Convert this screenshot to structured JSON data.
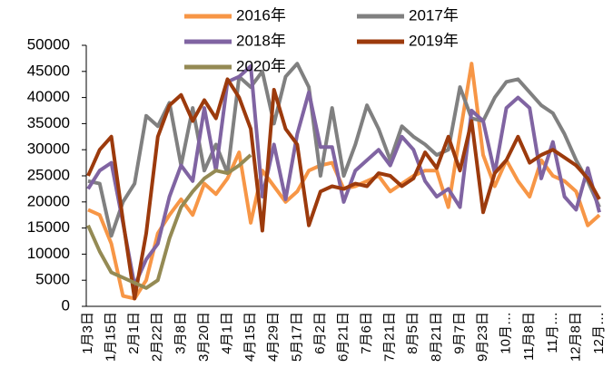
{
  "chart_data": {
    "type": "line",
    "categories": [
      "1月3日",
      null,
      "1月15日",
      null,
      "2月1日",
      null,
      "2月22日",
      null,
      "3月8日",
      null,
      "3月20日",
      null,
      "4月1日",
      null,
      "4月15日",
      null,
      "4月29日",
      null,
      "5月17日",
      null,
      "6月2日",
      null,
      "6月21日",
      null,
      "7月6日",
      null,
      "7月21日",
      null,
      "8月5日",
      null,
      "8月21日",
      null,
      "9月7日",
      null,
      "9月23日",
      null,
      "10月…",
      null,
      "11月8日",
      null,
      "11月…",
      null,
      "12月8日",
      null,
      "12月…"
    ],
    "series": [
      {
        "name": "2016年",
        "color": "#f79646",
        "values": [
          18500,
          17500,
          12000,
          2000,
          1500,
          5000,
          14000,
          17500,
          20500,
          17500,
          23500,
          21500,
          24500,
          29500,
          16000,
          26000,
          23000,
          20000,
          22000,
          26000,
          27000,
          27500,
          22500,
          23000,
          24000,
          25000,
          22000,
          23500,
          25000,
          26000,
          26000,
          19000,
          33000,
          46500,
          29000,
          23000,
          28000,
          24000,
          21000,
          28000,
          25000,
          24000,
          22000,
          15500,
          17500
        ]
      },
      {
        "name": "2017年",
        "color": "#808080",
        "values": [
          24000,
          23500,
          13500,
          20000,
          23500,
          36500,
          34500,
          39000,
          27000,
          38000,
          26000,
          31000,
          25500,
          44000,
          42000,
          45000,
          35000,
          44000,
          46500,
          42000,
          25000,
          38000,
          25000,
          31000,
          38500,
          34000,
          28000,
          34500,
          32500,
          31000,
          29000,
          30000,
          42000,
          36000,
          35500,
          40000,
          43000,
          43500,
          41000,
          38500,
          37000,
          33000,
          28000,
          24000,
          19000
        ]
      },
      {
        "name": "2018年",
        "color": "#8064a2",
        "values": [
          22500,
          26000,
          27500,
          16000,
          4000,
          9000,
          12000,
          21000,
          27000,
          24000,
          38000,
          26000,
          43000,
          44000,
          46000,
          21000,
          31000,
          20500,
          33000,
          41000,
          30500,
          30500,
          20000,
          26000,
          28000,
          30000,
          27000,
          32500,
          30000,
          24000,
          21000,
          22500,
          19000,
          37500,
          35500,
          25500,
          38000,
          40000,
          38000,
          24500,
          31500,
          21000,
          18500,
          26500,
          18000
        ]
      },
      {
        "name": "2019年",
        "color": "#9c3a0c",
        "values": [
          25000,
          30000,
          32500,
          16500,
          1500,
          14000,
          32500,
          38500,
          40500,
          35500,
          39500,
          36000,
          43500,
          40000,
          34000,
          14500,
          41500,
          34000,
          31000,
          15500,
          22000,
          23000,
          22500,
          23500,
          23000,
          25500,
          25000,
          23000,
          24500,
          29500,
          26500,
          32500,
          26000,
          35500,
          18000,
          25500,
          28000,
          32500,
          27500,
          29000,
          30000,
          28500,
          27000,
          24500,
          20500
        ]
      },
      {
        "name": "2020年",
        "color": "#948a54",
        "values": [
          15500,
          10500,
          6500,
          5500,
          4500,
          3500,
          5000,
          13000,
          19000,
          22000,
          24500,
          26000,
          25500,
          27000,
          29000,
          null,
          null,
          null,
          null,
          null,
          null,
          null,
          null,
          null,
          null,
          null,
          null,
          null,
          null,
          null,
          null,
          null,
          null,
          null,
          null,
          null,
          null,
          null,
          null,
          null,
          null,
          null,
          null,
          null,
          null
        ]
      }
    ],
    "ylim": [
      0,
      50000
    ],
    "yticks": [
      0,
      5000,
      10000,
      15000,
      20000,
      25000,
      30000,
      35000,
      40000,
      45000,
      50000
    ],
    "legend": "top"
  }
}
